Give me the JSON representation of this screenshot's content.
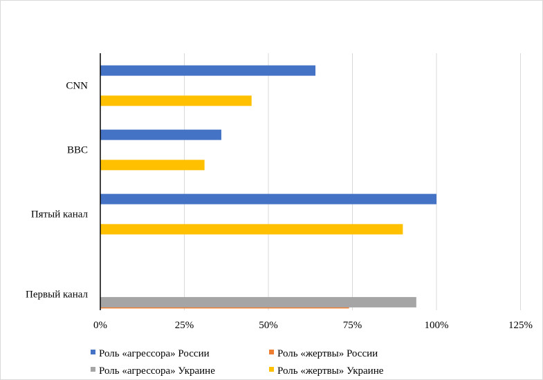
{
  "chart_data": {
    "type": "bar",
    "orientation": "horizontal",
    "title": "",
    "xlabel": "",
    "ylabel": "",
    "xlim": [
      0,
      125
    ],
    "x_ticks": [
      "0%",
      "25%",
      "50%",
      "75%",
      "100%",
      "125%"
    ],
    "categories": [
      "CNN",
      "BBC",
      "Пятый канал",
      "Первый канал"
    ],
    "series": [
      {
        "name": "Роль «агрессора» России",
        "color": "#4472c4",
        "values": [
          64,
          36,
          100,
          null
        ]
      },
      {
        "name": "Роль «жертвы» России",
        "color": "#ed7d31",
        "values": [
          null,
          null,
          null,
          74
        ]
      },
      {
        "name": "Роль «агрессора» Украине",
        "color": "#a5a5a5",
        "values": [
          null,
          null,
          null,
          94
        ]
      },
      {
        "name": "Роль «жертвы» Украине",
        "color": "#ffc000",
        "values": [
          45,
          31,
          90,
          null
        ]
      }
    ],
    "grid": true,
    "legend_position": "bottom"
  }
}
